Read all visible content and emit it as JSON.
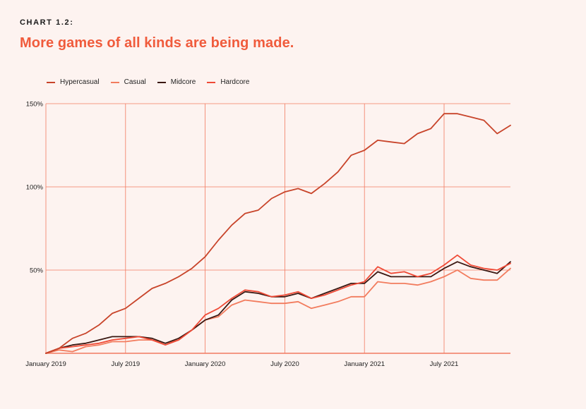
{
  "header": {
    "eyebrow": "CHART 1.2:",
    "title": "More games of all kinds are being made."
  },
  "colors": {
    "background": "#fdf3f0",
    "accent": "#f05b3c",
    "grid": "#f27a60"
  },
  "chart_data": {
    "type": "line",
    "title": "More games of all kinds are being made.",
    "xlabel": "",
    "ylabel": "",
    "ylim": [
      0,
      150
    ],
    "y_ticks": [
      {
        "value": 50,
        "label": "50%"
      },
      {
        "value": 100,
        "label": "100%"
      },
      {
        "value": 150,
        "label": "150%"
      }
    ],
    "x_ticks": [
      {
        "value": 0,
        "label": "January 2019"
      },
      {
        "value": 6,
        "label": "July 2019"
      },
      {
        "value": 12,
        "label": "January 2020"
      },
      {
        "value": 18,
        "label": "July 2020"
      },
      {
        "value": 24,
        "label": "January 2021"
      },
      {
        "value": 30,
        "label": "July 2021"
      }
    ],
    "x": [
      "2019-01",
      "2019-02",
      "2019-03",
      "2019-04",
      "2019-05",
      "2019-06",
      "2019-07",
      "2019-08",
      "2019-09",
      "2019-10",
      "2019-11",
      "2019-12",
      "2020-01",
      "2020-02",
      "2020-03",
      "2020-04",
      "2020-05",
      "2020-06",
      "2020-07",
      "2020-08",
      "2020-09",
      "2020-10",
      "2020-11",
      "2020-12",
      "2021-01",
      "2021-02",
      "2021-03",
      "2021-04",
      "2021-05",
      "2021-06",
      "2021-07",
      "2021-08",
      "2021-09",
      "2021-10",
      "2021-11",
      "2021-12"
    ],
    "grid": true,
    "legend_position": "top-left",
    "series": [
      {
        "name": "Hypercasual",
        "color": "#c8442a",
        "values": [
          0,
          3,
          9,
          12,
          17,
          24,
          27,
          33,
          39,
          42,
          46,
          51,
          58,
          68,
          77,
          84,
          86,
          93,
          97,
          99,
          96,
          102,
          109,
          119,
          122,
          128,
          127,
          126,
          132,
          135,
          144,
          144,
          142,
          140,
          132,
          137
        ]
      },
      {
        "name": "Casual",
        "color": "#f27c5e",
        "values": [
          0,
          2,
          1,
          4,
          5,
          7,
          7,
          8,
          8,
          6,
          8,
          14,
          20,
          22,
          29,
          32,
          31,
          30,
          30,
          31,
          27,
          29,
          31,
          34,
          34,
          43,
          42,
          42,
          41,
          43,
          46,
          50,
          45,
          44,
          44,
          51
        ]
      },
      {
        "name": "Midcore",
        "color": "#3a1812",
        "values": [
          0,
          3,
          5,
          6,
          8,
          10,
          10,
          10,
          9,
          6,
          9,
          14,
          20,
          23,
          32,
          37,
          36,
          34,
          34,
          36,
          33,
          36,
          39,
          42,
          42,
          49,
          46,
          46,
          46,
          46,
          51,
          55,
          52,
          50,
          48,
          55
        ]
      },
      {
        "name": "Hardcore",
        "color": "#ef4a36",
        "values": [
          0,
          3,
          4,
          5,
          6,
          8,
          9,
          10,
          8,
          5,
          8,
          14,
          23,
          27,
          33,
          38,
          37,
          34,
          35,
          37,
          33,
          35,
          38,
          41,
          43,
          52,
          48,
          49,
          46,
          48,
          53,
          59,
          53,
          51,
          50,
          54
        ]
      }
    ]
  }
}
